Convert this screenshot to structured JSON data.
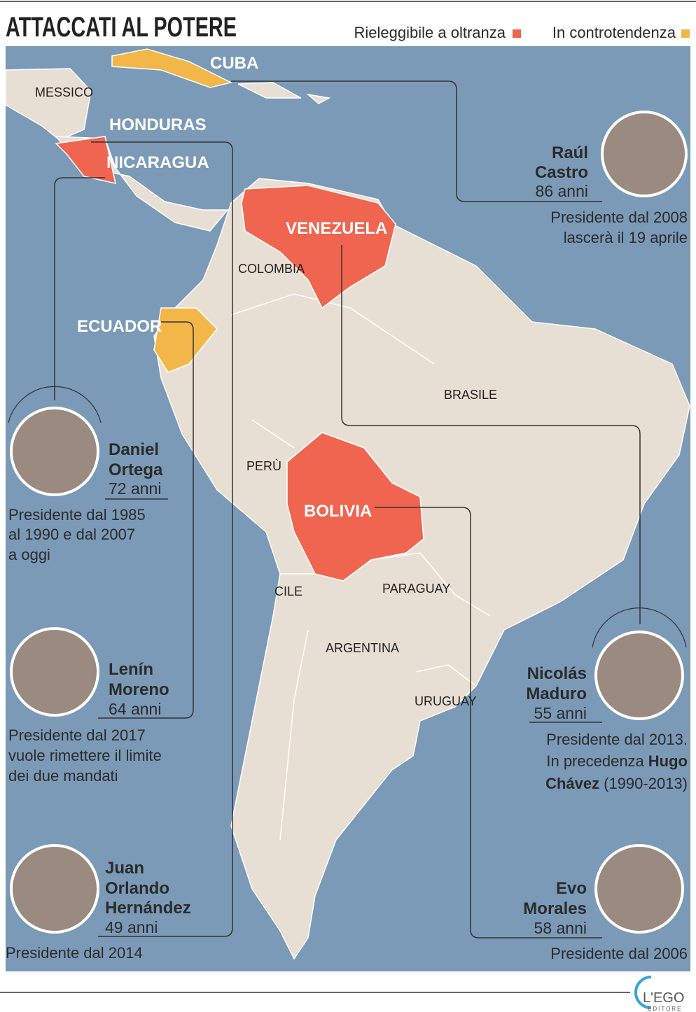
{
  "header": {
    "title": "ATTACCATI AL POTERE"
  },
  "legend": [
    {
      "label": "Rieleggibile a oltranza",
      "color": "#f0654f"
    },
    {
      "label": "In controtendenza",
      "color": "#f2b649"
    }
  ],
  "countries": [
    "CUBA",
    "MESSICO",
    "HONDURAS",
    "NICARAGUA",
    "VENEZUELA",
    "COLOMBIA",
    "ECUADOR",
    "BRASILE",
    "PERÙ",
    "BOLIVIA",
    "CILE",
    "PARAGUAY",
    "ARGENTINA",
    "URUGUAY"
  ],
  "leaders": [
    {
      "name": [
        "Raúl",
        "Castro"
      ],
      "age": "86 anni",
      "desc": [
        "Presidente dal 2008",
        "lascerà il 19 aprile"
      ]
    },
    {
      "name": [
        "Daniel",
        "Ortega"
      ],
      "age": "72 anni",
      "desc": [
        "Presidente dal 1985",
        "al 1990 e dal 2007",
        "a oggi"
      ]
    },
    {
      "name": [
        "Lenín",
        "Moreno"
      ],
      "age": "64 anni",
      "desc": [
        "Presidente dal 2017",
        "vuole rimettere il limite",
        "dei due mandati"
      ]
    },
    {
      "name": [
        "Juan",
        "Orlando",
        "Hernández"
      ],
      "age": "49 anni",
      "desc": [
        "Presidente dal 2014"
      ]
    },
    {
      "name": [
        "Nicolás",
        "Maduro"
      ],
      "age": "55 anni",
      "desc": [
        "Presidente dal 2013.",
        "In precedenza",
        "Hugo",
        "Chávez",
        "(1990-2013)"
      ]
    },
    {
      "name": [
        "Evo",
        "Morales"
      ],
      "age": "58 anni",
      "desc": [
        "Presidente dal 2006"
      ]
    }
  ],
  "footer": {
    "logo": "L'EGO",
    "sublogo": "EDITORE"
  }
}
